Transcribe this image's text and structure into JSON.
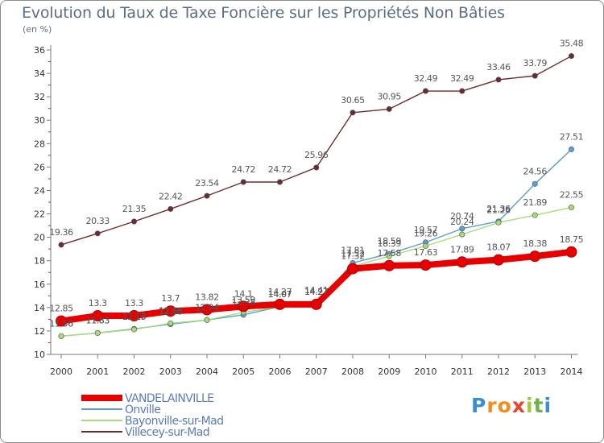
{
  "title": "Evolution du Taux de Taxe Foncière sur les Propriétés Non Bâties",
  "unit_label": "(en %)",
  "brand": {
    "name": "Proxiti",
    "letters": [
      "P",
      "r",
      "o",
      "x",
      "i",
      "t",
      "i"
    ],
    "colors": [
      "#3b8fd1",
      "#f28c1e",
      "#f28c1e",
      "#e8452c",
      "#a3c93a",
      "#6bb443",
      "#3b8fd1"
    ]
  },
  "chart_data": {
    "type": "line",
    "title": "Evolution du Taux de Taxe Foncière sur les Propriétés Non Bâties",
    "ylabel": "(en %)",
    "xlabel": "",
    "ylim": [
      10,
      36
    ],
    "yticks": [
      "10",
      "12",
      "14",
      "16",
      "18",
      "20",
      "22",
      "24",
      "26",
      "28",
      "30",
      "32",
      "34",
      "36"
    ],
    "ytick_values": [
      10,
      12,
      14,
      16,
      18,
      20,
      22,
      24,
      26,
      28,
      30,
      32,
      34,
      36
    ],
    "x": [
      "2000",
      "2001",
      "2002",
      "2003",
      "2004",
      "2005",
      "2006",
      "2007",
      "2008",
      "2009",
      "2010",
      "2011",
      "2012",
      "2013",
      "2014"
    ],
    "grid": false,
    "legend_position": "bottom-left",
    "series": [
      {
        "name": "Villecey-sur-Mad",
        "color": "#6d2a30",
        "values": [
          19.36,
          20.33,
          21.35,
          22.42,
          23.54,
          24.72,
          24.72,
          25.96,
          30.65,
          30.95,
          32.49,
          32.49,
          33.46,
          33.79,
          35.48
        ],
        "labels": [
          "19.36",
          "20.33",
          "21.35",
          "22.42",
          "23.54",
          "24.72",
          "24.72",
          "25.96",
          "30.65",
          "30.95",
          "32.49",
          "32.49",
          "33.46",
          "33.79",
          "35.48"
        ]
      },
      {
        "name": "Onville",
        "color": "#5b9ed6",
        "values": [
          11.56,
          11.83,
          12.18,
          12.58,
          12.94,
          13.38,
          14.07,
          14.27,
          17.81,
          18.59,
          19.57,
          20.74,
          21.36,
          24.56,
          27.51
        ],
        "labels": [
          "11.56",
          "11.83",
          "12.18",
          "12.58",
          "12.94",
          "13.38",
          "14.07",
          "14.27",
          "17.81",
          "18.59",
          "19.57",
          "20.74",
          "21.36",
          "24.56",
          "27.51"
        ]
      },
      {
        "name": "Bayonville-sur-Mad",
        "color": "#a6dd75",
        "values": [
          11.56,
          11.83,
          12.13,
          12.66,
          12.94,
          13.59,
          14.07,
          14.41,
          17.52,
          18.39,
          19.26,
          20.24,
          21.26,
          21.89,
          22.55
        ],
        "labels": [
          "11.56",
          "11.83",
          "12.13",
          "12.66",
          "12.94",
          "13.59",
          "14.07",
          "14.41",
          "17.52",
          "18.39",
          "19.26",
          "20.24",
          "21.26",
          "21.89",
          "22.55"
        ]
      },
      {
        "name": "VANDELAINVILLE",
        "color": "#e80000",
        "values": [
          12.85,
          13.3,
          13.3,
          13.7,
          13.82,
          14.1,
          14.27,
          14.27,
          17.32,
          17.58,
          17.63,
          17.89,
          18.07,
          18.38,
          18.75
        ],
        "labels": [
          "12.85",
          "13.3",
          "13.3",
          "13.7",
          "13.82",
          "14.1",
          "14.27",
          "14.27",
          "17.32",
          "17.58",
          "17.63",
          "17.89",
          "18.07",
          "18.38",
          "18.75"
        ]
      }
    ],
    "legend": [
      "VANDELAINVILLE",
      "Onville",
      "Bayonville-sur-Mad",
      "Villecey-sur-Mad"
    ]
  }
}
